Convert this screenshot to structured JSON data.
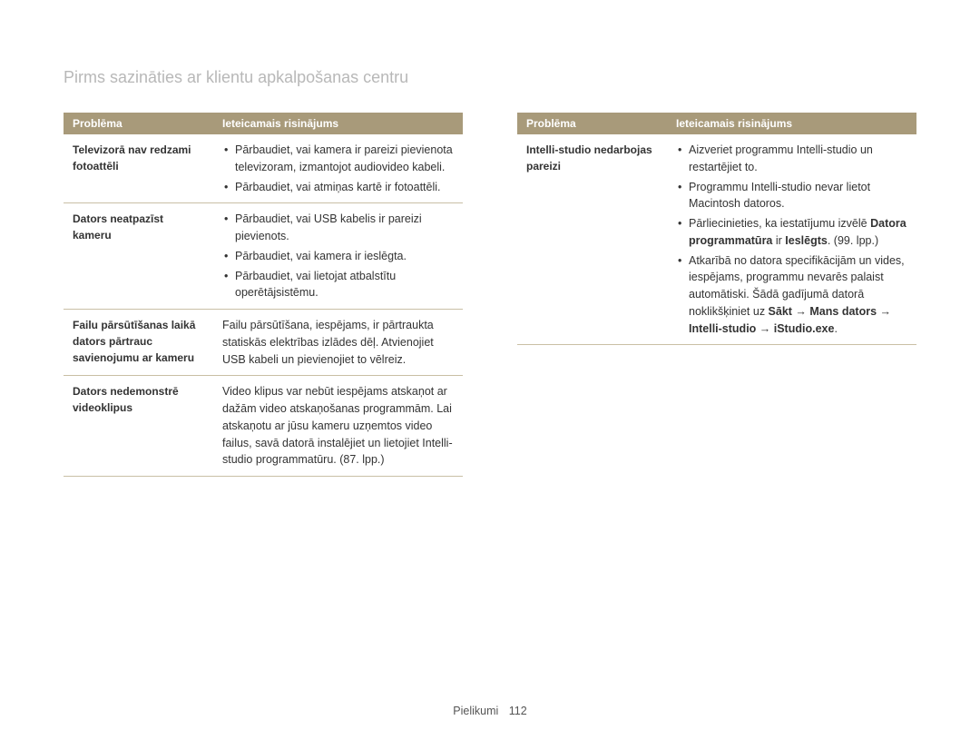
{
  "page": {
    "title": "Pirms sazināties ar klientu apkalpošanas centru",
    "footer_section": "Pielikumi",
    "footer_page": "112"
  },
  "headers": {
    "problem": "Problēma",
    "solution": "Ieteicamais risinājums"
  },
  "colors": {
    "header_bg": "#a89a7a",
    "header_text": "#ffffff",
    "title_text": "#b8b8b8",
    "border": "#c9bfa5",
    "body_text": "#333333"
  },
  "left_table": {
    "rows": [
      {
        "problem": "Televizorā nav redzami fotoattēli",
        "bullets": [
          "Pārbaudiet, vai kamera ir pareizi pievienota televizoram, izmantojot audiovideo kabeli.",
          "Pārbaudiet, vai atmiņas kartē ir fotoattēli."
        ]
      },
      {
        "problem": "Dators neatpazīst kameru",
        "bullets": [
          "Pārbaudiet, vai USB kabelis ir pareizi pievienots.",
          "Pārbaudiet, vai kamera ir ieslēgta.",
          "Pārbaudiet, vai lietojat atbalstītu operētājsistēmu."
        ]
      },
      {
        "problem": "Failu pārsūtīšanas laikā dators pārtrauc savienojumu ar kameru",
        "plain": "Failu pārsūtīšana, iespējams, ir pārtraukta statiskās elektrības izlādes dēļ. Atvienojiet USB kabeli un pievienojiet to vēlreiz."
      },
      {
        "problem": "Dators nedemonstrē videoklipus",
        "plain": "Video klipus var nebūt iespējams atskaņot ar dažām video atskaņošanas programmām. Lai atskaņotu ar jūsu kameru uzņemtos video failus, savā datorā instalējiet un lietojiet Intelli-studio programmatūru. (87. lpp.)"
      }
    ]
  },
  "right_table": {
    "rows": [
      {
        "problem": "Intelli-studio nedarbojas pareizi",
        "bullets_html": [
          {
            "text": "Aizveriet programmu Intelli-studio un restartējiet to."
          },
          {
            "text": "Programmu Intelli-studio nevar lietot Macintosh datoros."
          },
          {
            "pre": "Pārliecinieties, ka iestatījumu izvēlē ",
            "bold": "Datora programmatūra",
            "mid": " ir ",
            "bold2": "Ieslēgts",
            "post": ". (99. lpp.)"
          },
          {
            "pre": "Atkarībā no datora specifikācijām un vides, iespējams, programmu nevarēs palaist automātiski. Šādā gadījumā datorā noklikšķiniet uz ",
            "bold": "Sākt → Mans dators → Intelli-studio → iStudio.exe",
            "post": "."
          }
        ]
      }
    ]
  }
}
